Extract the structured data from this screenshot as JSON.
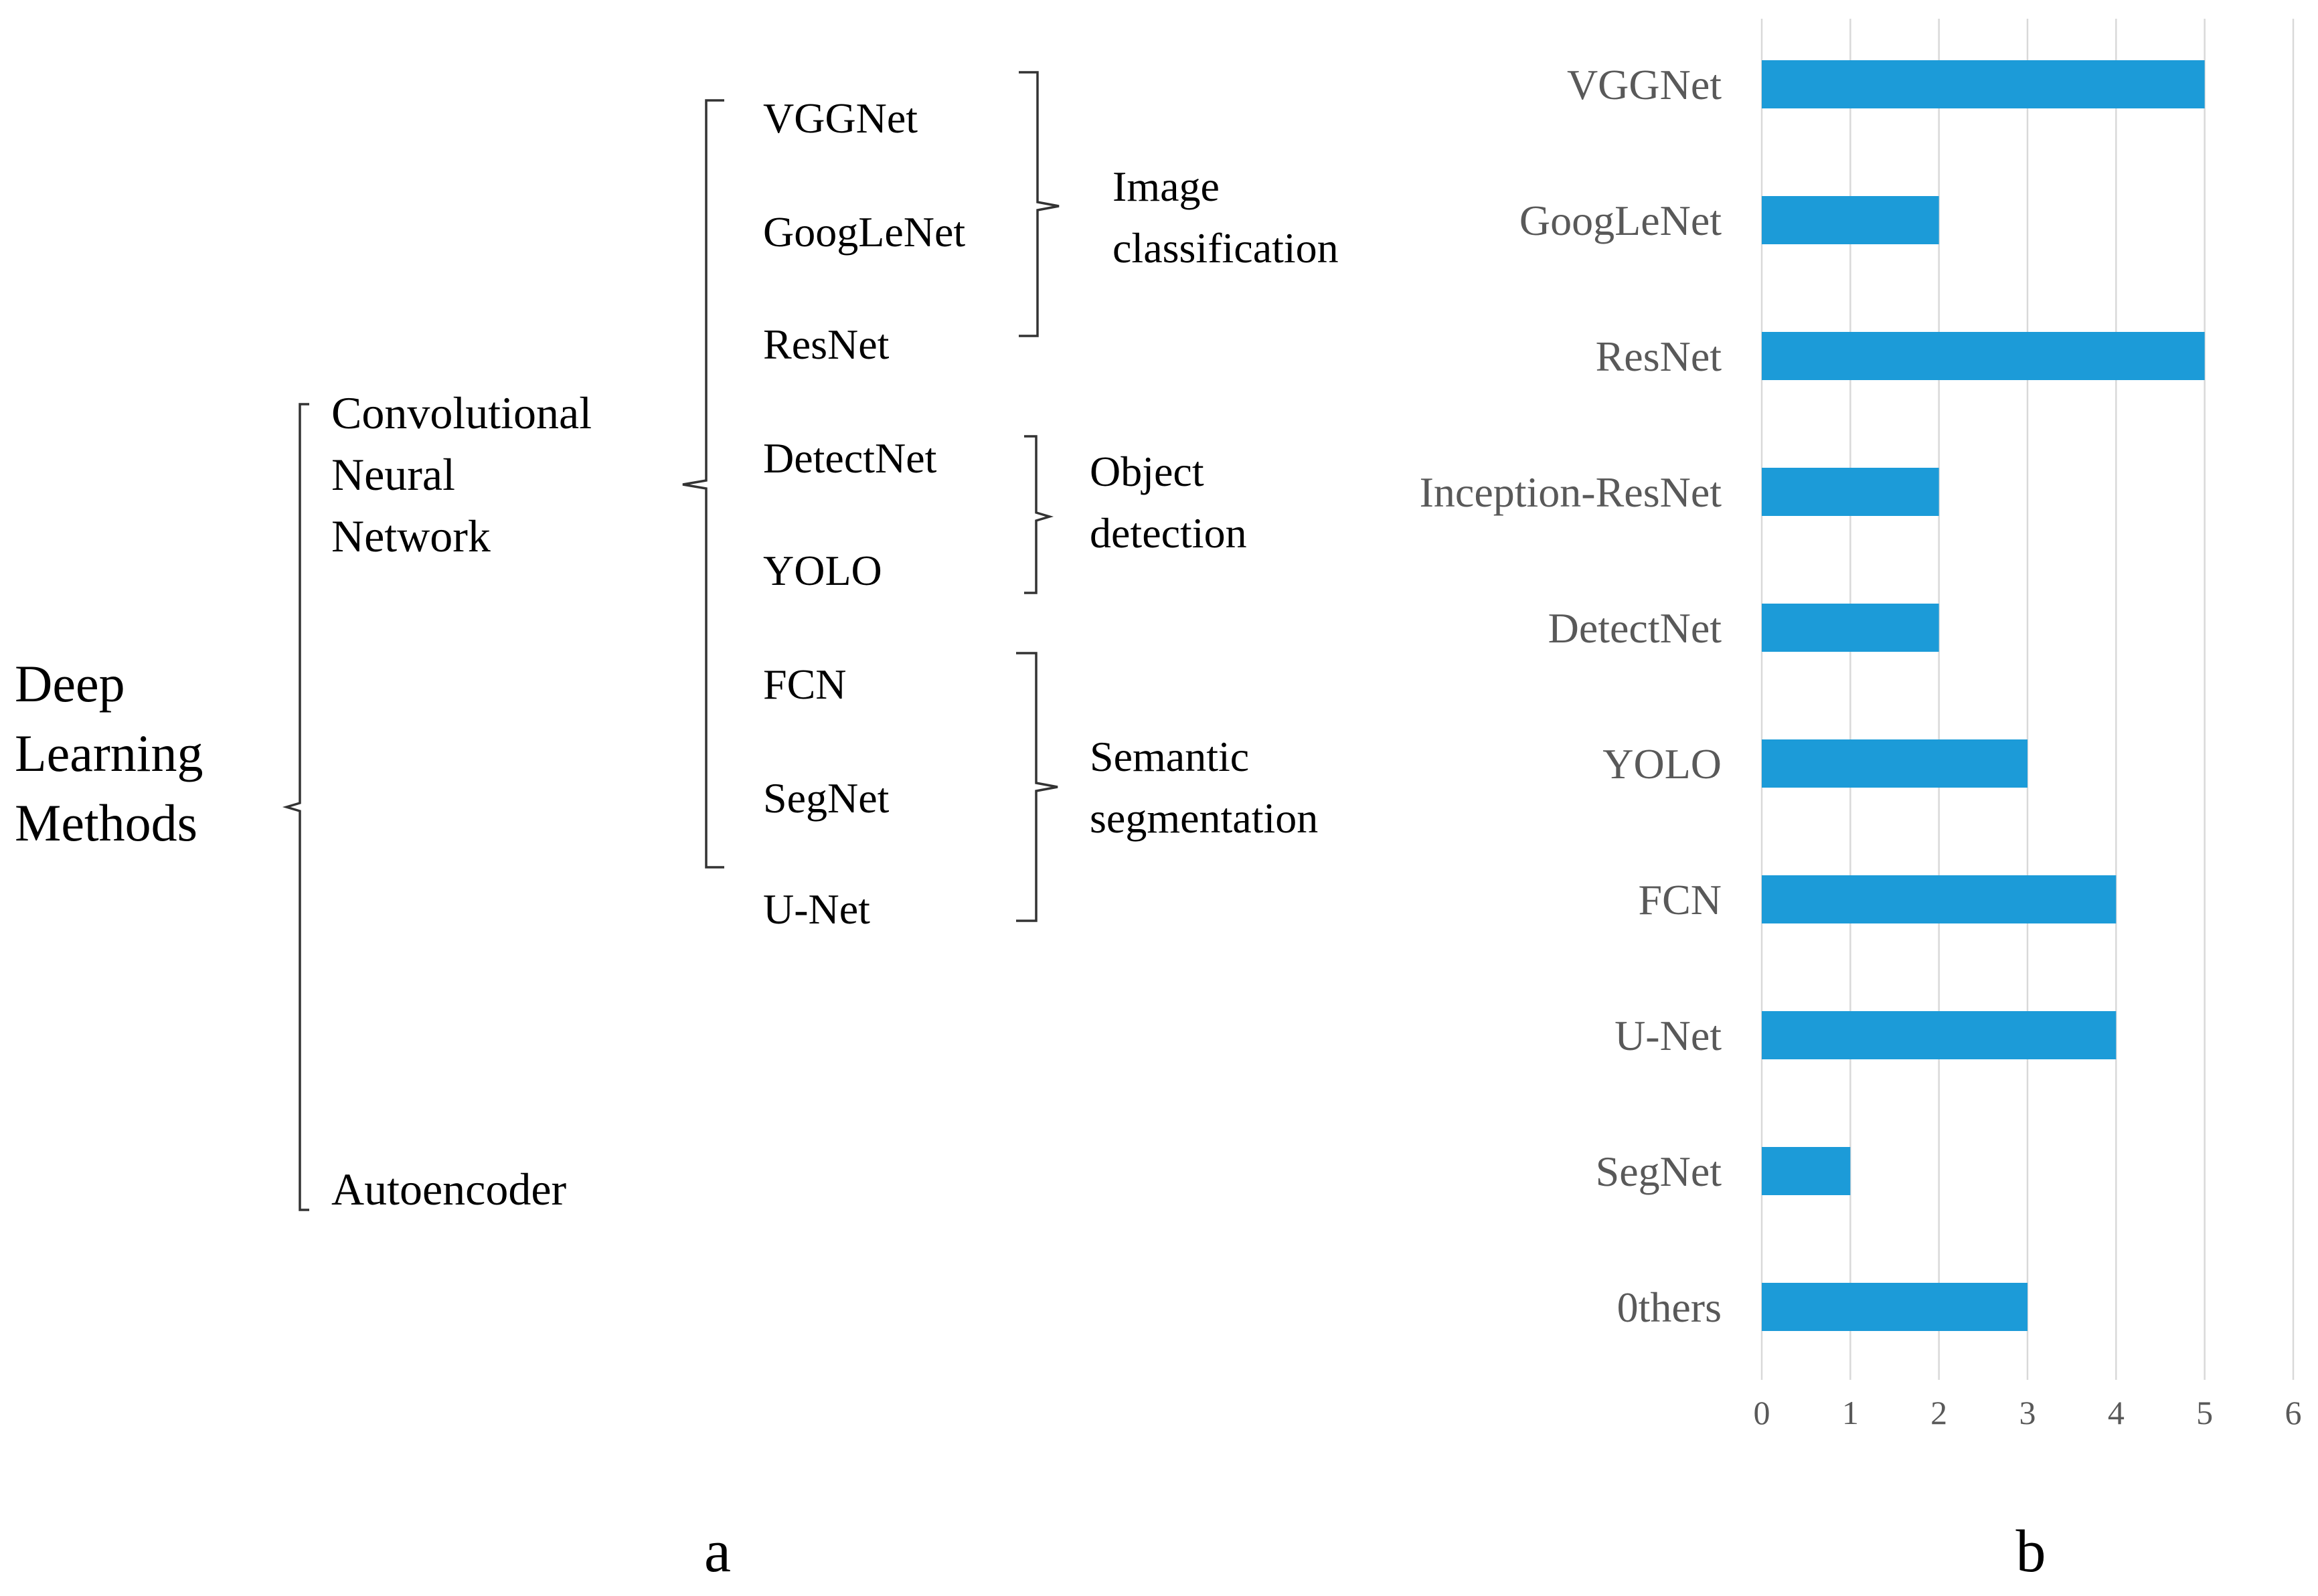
{
  "taxonomy": {
    "root_lines": [
      "Deep",
      "Learning",
      "Methods"
    ],
    "cnn_lines": [
      "Convolutional",
      "Neural",
      "Network"
    ],
    "autoencoder": "Autoencoder",
    "networks": [
      "VGGNet",
      "GoogLeNet",
      "ResNet",
      "DetectNet",
      "YOLO",
      "FCN",
      "SegNet",
      "U-Net"
    ],
    "tasks": [
      {
        "lines": [
          "Image",
          "classification"
        ]
      },
      {
        "lines": [
          "Object",
          "detection"
        ]
      },
      {
        "lines": [
          "Semantic",
          "segmentation"
        ]
      }
    ]
  },
  "panel_labels": {
    "a": "a",
    "b": "b"
  },
  "chart_data": {
    "type": "bar",
    "orientation": "horizontal",
    "categories": [
      "VGGNet",
      "GoogLeNet",
      "ResNet",
      "Inception-ResNet",
      "DetectNet",
      "YOLO",
      "FCN",
      "U-Net",
      "SegNet",
      "0thers"
    ],
    "values": [
      5,
      2,
      5,
      2,
      2,
      3,
      4,
      4,
      1,
      3
    ],
    "xlim": [
      0,
      6
    ],
    "xticks": [
      "0",
      "1",
      "2",
      "3",
      "4",
      "5",
      "6"
    ],
    "grid": true,
    "bar_color": "#1c9bd8",
    "title": "",
    "xlabel": "",
    "ylabel": ""
  }
}
